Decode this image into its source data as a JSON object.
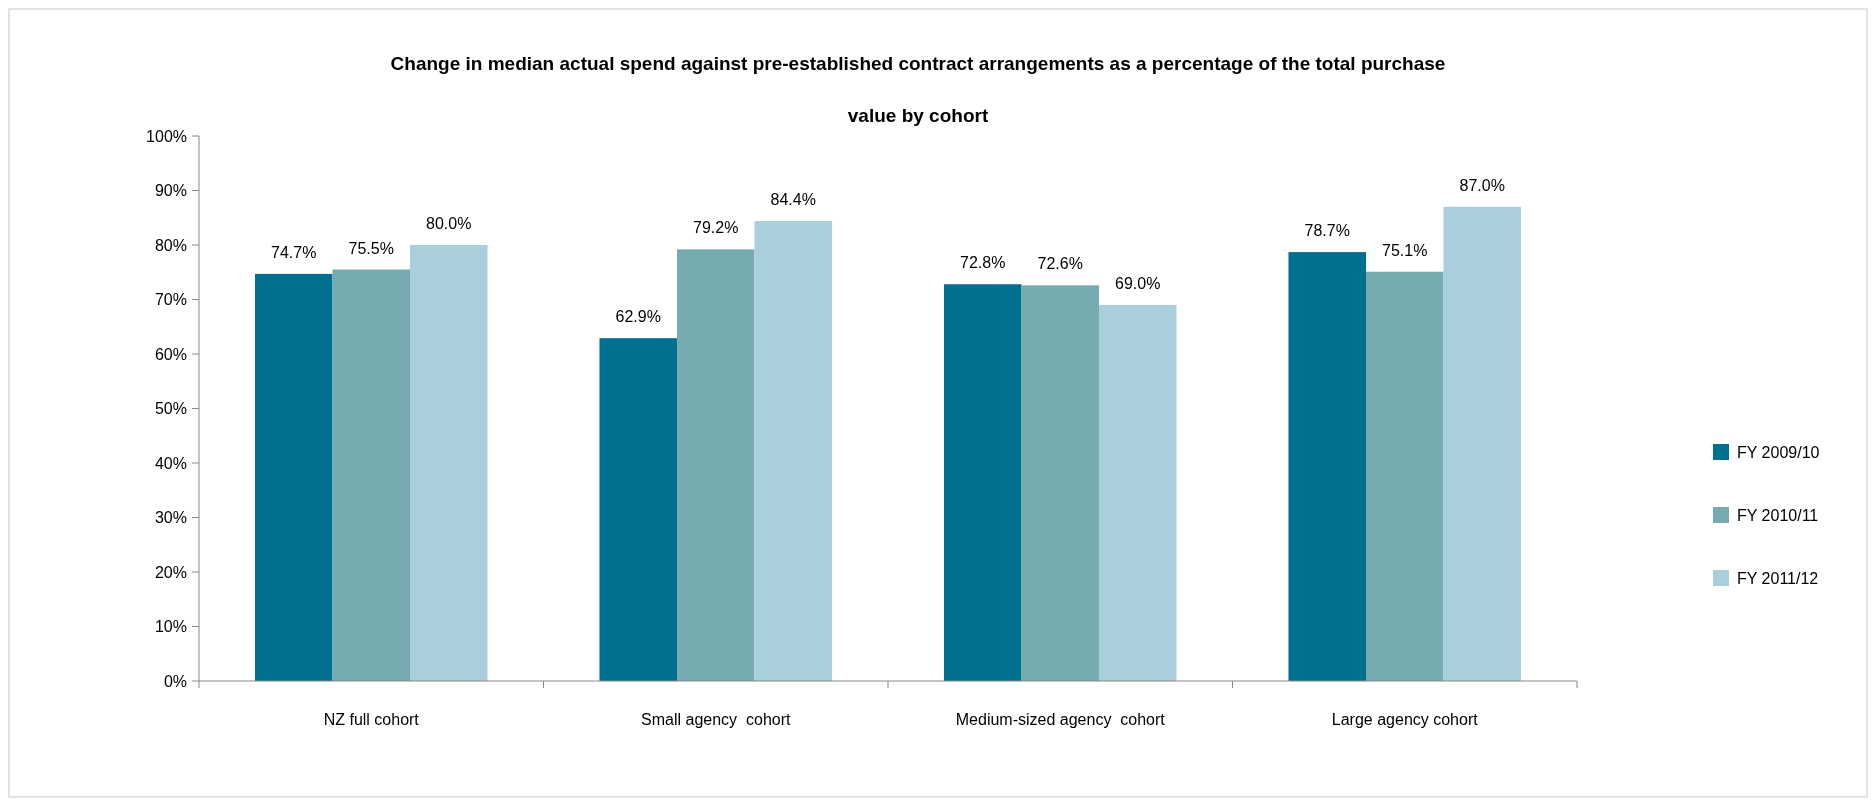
{
  "chart_data": {
    "type": "bar",
    "title": "Change in median actual spend against pre-established contract arrangements as a percentage of the total purchase value by cohort",
    "categories": [
      "NZ full cohort",
      "Small agency  cohort",
      "Medium-sized agency  cohort",
      "Large agency cohort"
    ],
    "series": [
      {
        "name": "FY 2009/10",
        "color": "#007090",
        "values": [
          74.7,
          62.9,
          72.8,
          78.7
        ],
        "value_labels": [
          "74.7%",
          "62.9%",
          "72.8%",
          "78.7%"
        ]
      },
      {
        "name": "FY 2010/11",
        "color": "#76abb0",
        "values": [
          75.5,
          79.2,
          72.6,
          75.1
        ],
        "value_labels": [
          "75.5%",
          "79.2%",
          "72.6%",
          "75.1%"
        ]
      },
      {
        "name": "FY 2011/12",
        "color": "#a9cfdc",
        "values": [
          80.0,
          84.4,
          69.0,
          87.0
        ],
        "value_labels": [
          "80.0%",
          "84.4%",
          "69.0%",
          "87.0%"
        ]
      }
    ],
    "ylim": [
      0,
      100
    ],
    "yticks": [
      {
        "value": 0,
        "label": "0%"
      },
      {
        "value": 10,
        "label": "10%"
      },
      {
        "value": 20,
        "label": "20%"
      },
      {
        "value": 30,
        "label": "30%"
      },
      {
        "value": 40,
        "label": "40%"
      },
      {
        "value": 50,
        "label": "50%"
      },
      {
        "value": 60,
        "label": "60%"
      },
      {
        "value": 70,
        "label": "70%"
      },
      {
        "value": 80,
        "label": "80%"
      },
      {
        "value": 90,
        "label": "90%"
      },
      {
        "value": 100,
        "label": "100%"
      }
    ],
    "legend": "right",
    "grid": false
  }
}
